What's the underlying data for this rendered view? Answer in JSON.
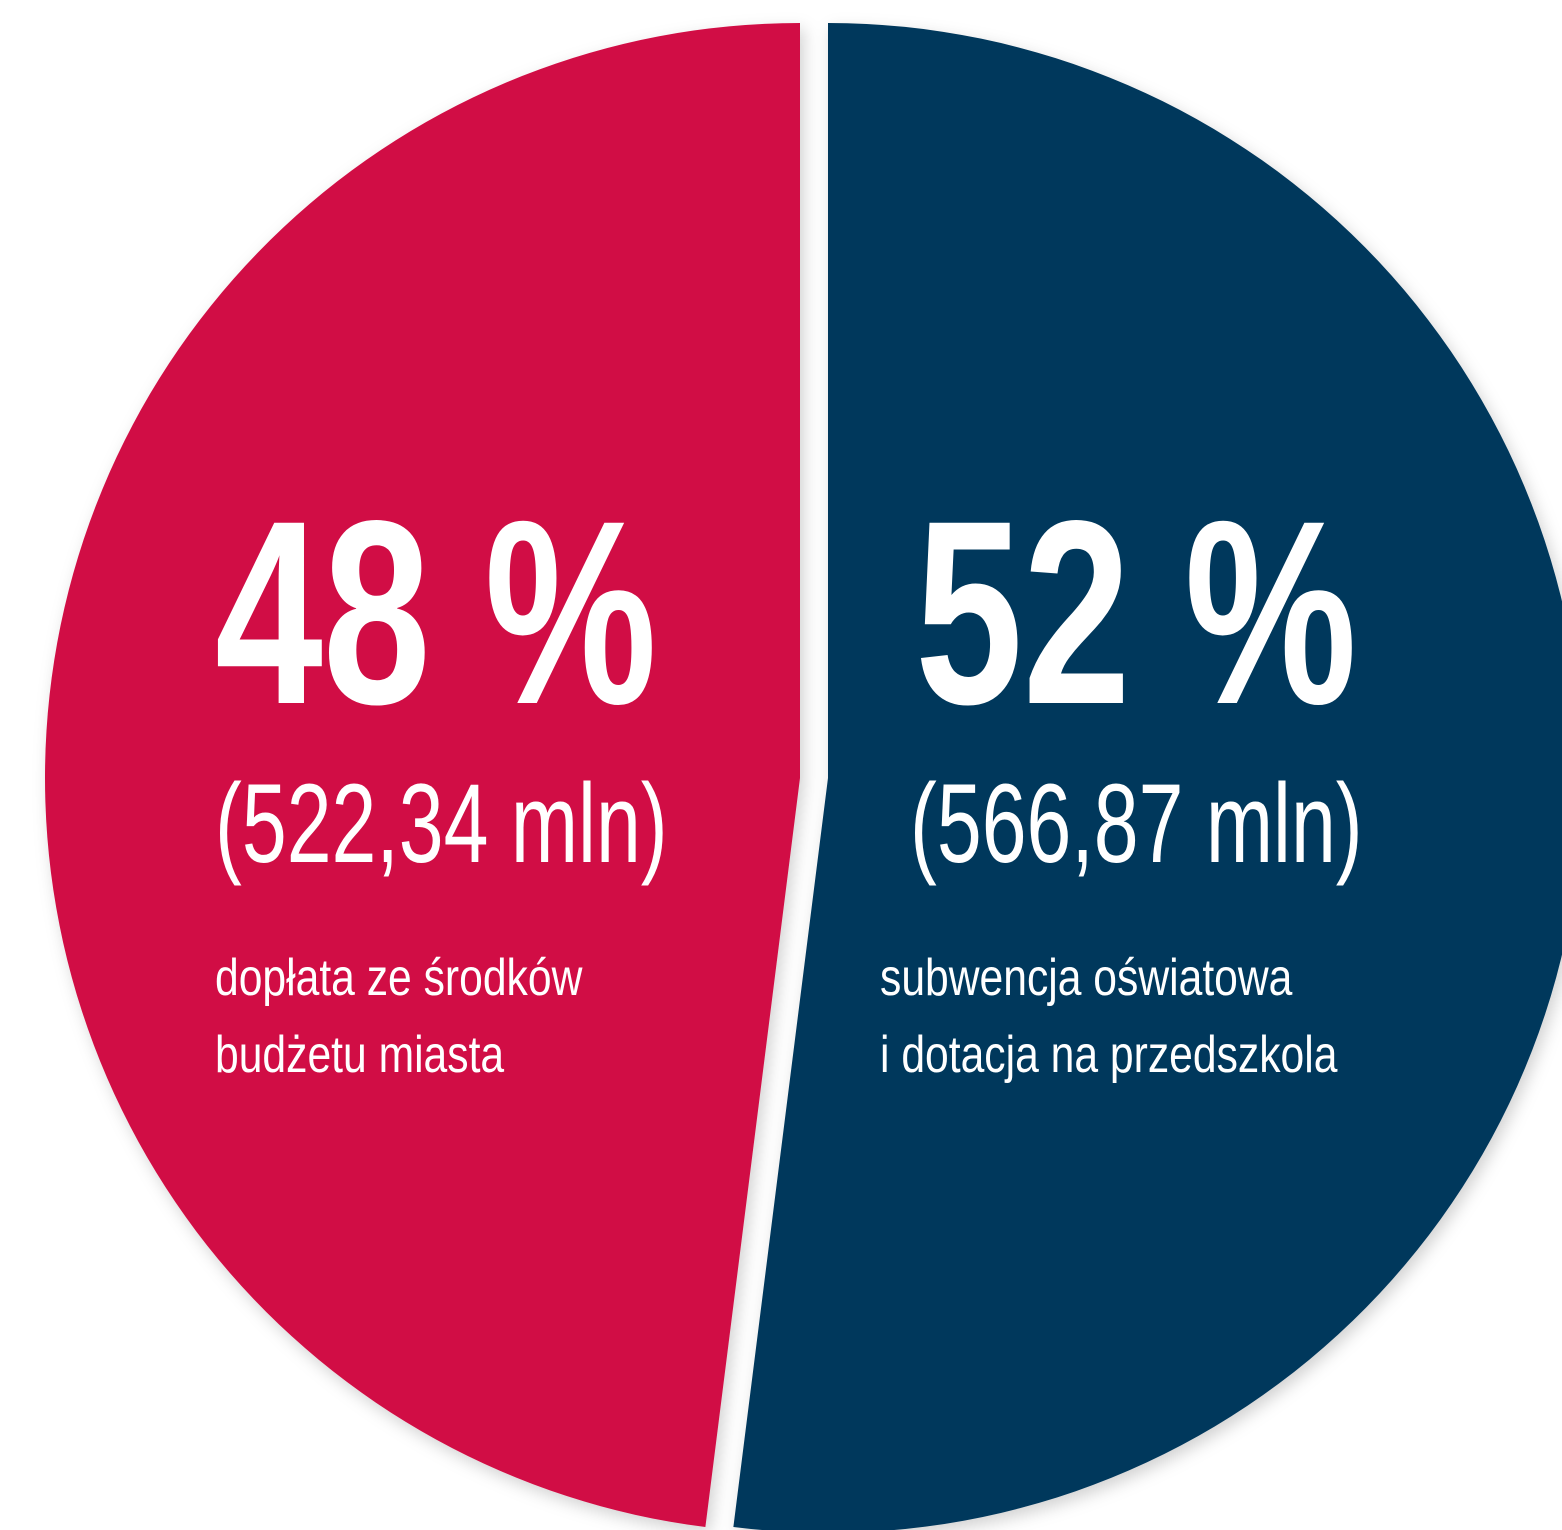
{
  "chart_data": {
    "type": "pie",
    "categories": [
      "dopłata ze środków\nbudżetu miasta",
      "subwencja oświatowa\ni dotacja na przedszkola"
    ],
    "values": [
      48,
      52
    ],
    "value_labels": [
      "48 %",
      "52 %"
    ],
    "amount_labels": [
      "(522,34 mln)",
      "(566,87 mln)"
    ],
    "colors": [
      "#d10d44",
      "#02375b"
    ]
  }
}
